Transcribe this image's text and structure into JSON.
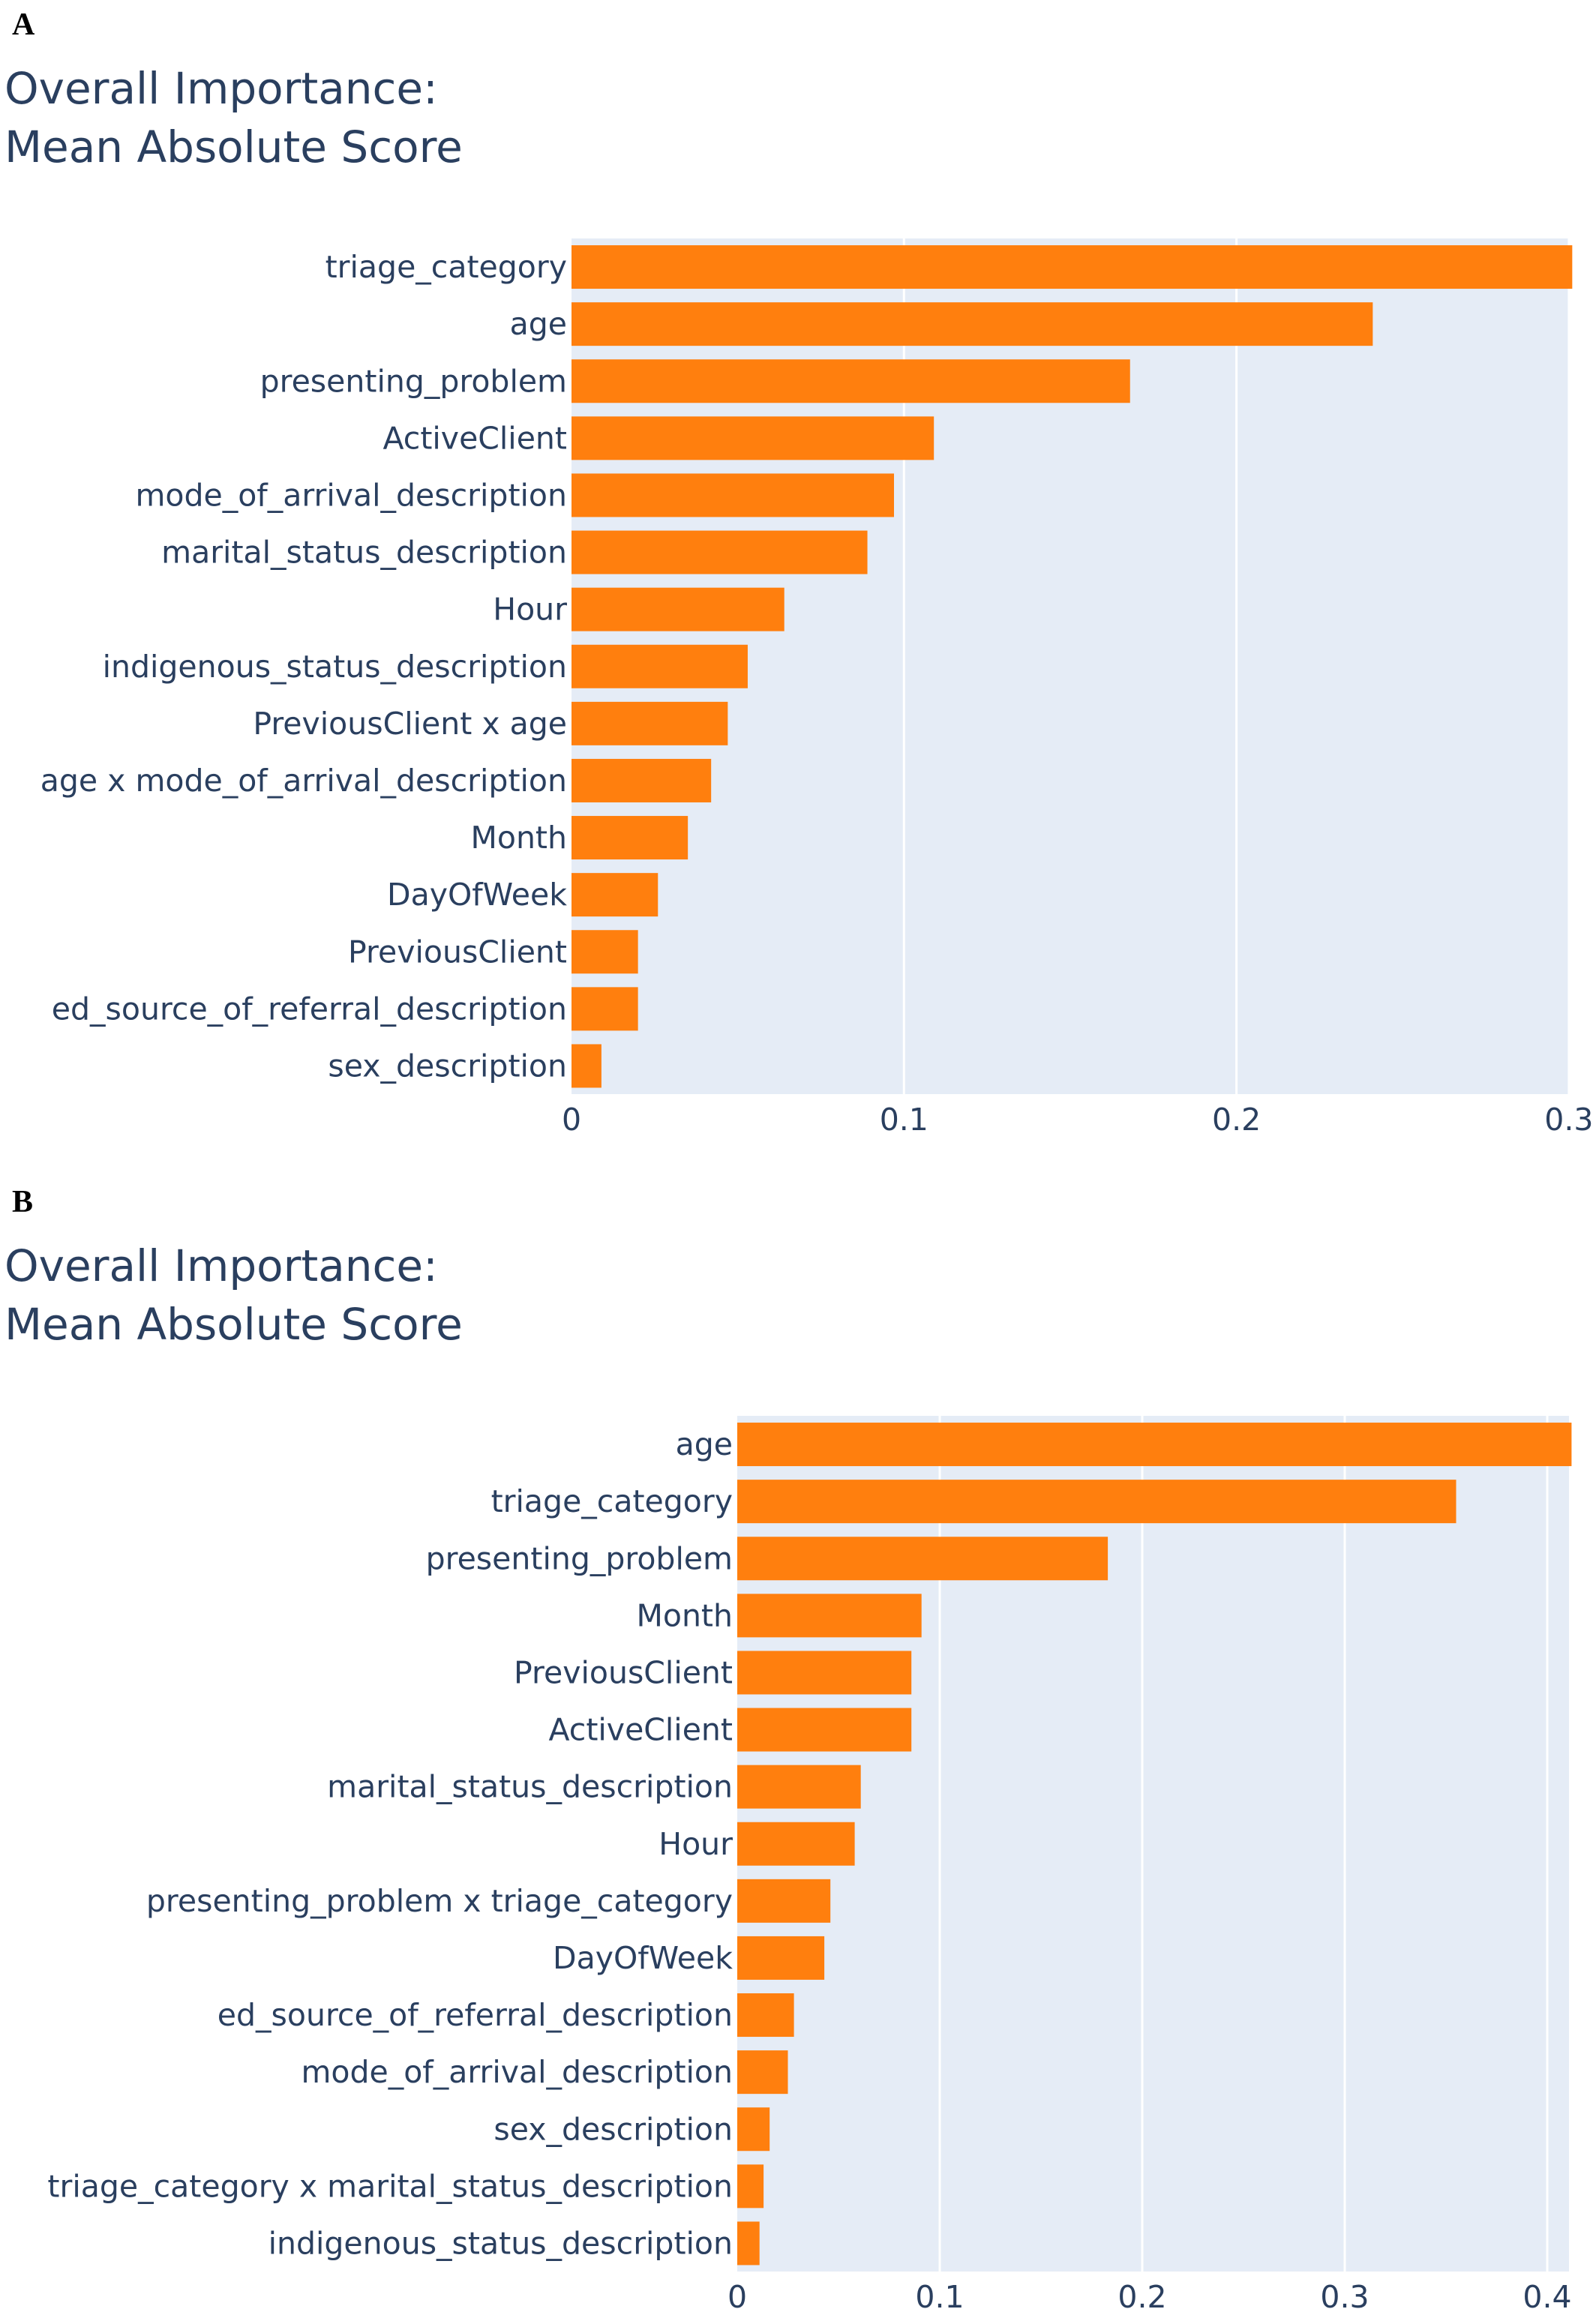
{
  "chart_data": [
    {
      "panel": "A",
      "type": "bar",
      "orientation": "horizontal",
      "title_lines": [
        "Overall Importance:",
        "Mean Absolute Score"
      ],
      "categories": [
        "triage_category",
        "age",
        "presenting_problem",
        "ActiveClient",
        "mode_of_arrival_description",
        "marital_status_description",
        "Hour",
        "indigenous_status_description",
        "PreviousClient x age",
        "age x mode_of_arrival_description",
        "Month",
        "DayOfWeek",
        "PreviousClient",
        "ed_source_of_referral_description",
        "sex_description"
      ],
      "values": [
        0.301,
        0.241,
        0.168,
        0.109,
        0.097,
        0.089,
        0.064,
        0.053,
        0.047,
        0.042,
        0.035,
        0.026,
        0.02,
        0.02,
        0.009
      ],
      "xlim": [
        0,
        0.3
      ],
      "xticks": [
        0,
        0.1,
        0.2,
        0.3
      ],
      "xtick_labels": [
        "0",
        "0.1",
        "0.2",
        "0.3"
      ],
      "grid": true,
      "bar_color": "#ff7f0e",
      "plot_bg": "#e5ecf6"
    },
    {
      "panel": "B",
      "type": "bar",
      "orientation": "horizontal",
      "title_lines": [
        "Overall Importance:",
        "Mean Absolute Score"
      ],
      "categories": [
        "age",
        "triage_category",
        "presenting_problem",
        "Month",
        "PreviousClient",
        "ActiveClient",
        "marital_status_description",
        "Hour",
        "presenting_problem x triage_category",
        "DayOfWeek",
        "ed_source_of_referral_description",
        "mode_of_arrival_description",
        "sex_description",
        "triage_category x marital_status_description",
        "indigenous_status_description"
      ],
      "values": [
        0.412,
        0.355,
        0.183,
        0.091,
        0.086,
        0.086,
        0.061,
        0.058,
        0.046,
        0.043,
        0.028,
        0.025,
        0.016,
        0.013,
        0.011
      ],
      "xlim": [
        0,
        0.4
      ],
      "xticks": [
        0,
        0.1,
        0.2,
        0.3,
        0.4
      ],
      "xtick_labels": [
        "0",
        "0.1",
        "0.2",
        "0.3",
        "0.4"
      ],
      "grid": true,
      "bar_color": "#ff7f0e",
      "plot_bg": "#e5ecf6"
    }
  ]
}
